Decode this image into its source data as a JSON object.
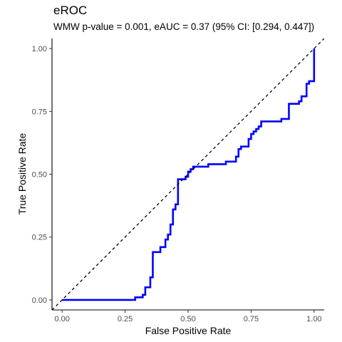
{
  "chart_data": {
    "type": "line",
    "title": "eROC",
    "subtitle": "WMW p-value = 0.001, eAUC = 0.37 (95% CI: [0.294, 0.447])",
    "xlabel": "False Positive Rate",
    "ylabel": "True Positive Rate",
    "xlim": [
      -0.04,
      1.04
    ],
    "ylim": [
      -0.04,
      1.04
    ],
    "x_ticks": [
      0.0,
      0.25,
      0.5,
      0.75,
      1.0
    ],
    "x_tick_labels": [
      "0.00",
      "0.25",
      "0.50",
      "0.75",
      "1.00"
    ],
    "y_ticks": [
      0.0,
      0.25,
      0.5,
      0.75,
      1.0
    ],
    "y_tick_labels": [
      "0.00",
      "0.25",
      "0.50",
      "0.75",
      "1.00"
    ],
    "grid": false,
    "colors": {
      "roc": "#0000ff",
      "reference": "#000000"
    },
    "series": [
      {
        "style": "solid",
        "x": [
          0.0,
          0.29,
          0.29,
          0.32,
          0.32,
          0.33,
          0.33,
          0.35,
          0.35,
          0.36,
          0.36,
          0.37,
          0.37,
          0.39,
          0.39,
          0.41,
          0.41,
          0.42,
          0.42,
          0.43,
          0.43,
          0.44,
          0.44,
          0.45,
          0.45,
          0.46,
          0.46,
          0.47,
          0.47,
          0.49,
          0.49,
          0.5,
          0.5,
          0.51,
          0.51,
          0.52,
          0.52,
          0.53,
          0.53,
          0.58,
          0.58,
          0.65,
          0.65,
          0.69,
          0.69,
          0.7,
          0.7,
          0.71,
          0.71,
          0.74,
          0.74,
          0.75,
          0.75,
          0.76,
          0.76,
          0.77,
          0.77,
          0.78,
          0.78,
          0.79,
          0.79,
          0.8,
          0.8,
          0.81,
          0.81,
          0.87,
          0.87,
          0.9,
          0.9,
          0.94,
          0.94,
          0.95,
          0.95,
          0.97,
          0.97,
          0.98,
          0.98,
          1.0,
          1.0
        ],
        "y": [
          0.0,
          0.0,
          0.01,
          0.01,
          0.02,
          0.02,
          0.05,
          0.05,
          0.09,
          0.09,
          0.19,
          0.19,
          0.19,
          0.19,
          0.21,
          0.21,
          0.24,
          0.24,
          0.26,
          0.26,
          0.3,
          0.3,
          0.36,
          0.36,
          0.38,
          0.38,
          0.48,
          0.48,
          0.48,
          0.48,
          0.49,
          0.49,
          0.51,
          0.51,
          0.52,
          0.52,
          0.53,
          0.53,
          0.53,
          0.53,
          0.54,
          0.54,
          0.55,
          0.55,
          0.57,
          0.57,
          0.6,
          0.6,
          0.61,
          0.61,
          0.64,
          0.64,
          0.66,
          0.66,
          0.67,
          0.67,
          0.68,
          0.68,
          0.69,
          0.69,
          0.71,
          0.71,
          0.71,
          0.71,
          0.71,
          0.71,
          0.72,
          0.72,
          0.78,
          0.78,
          0.79,
          0.79,
          0.81,
          0.81,
          0.86,
          0.86,
          0.87,
          0.87,
          1.0
        ]
      },
      {
        "style": "dashed",
        "x": [
          -0.04,
          1.04
        ],
        "y": [
          -0.04,
          1.04
        ]
      }
    ]
  }
}
